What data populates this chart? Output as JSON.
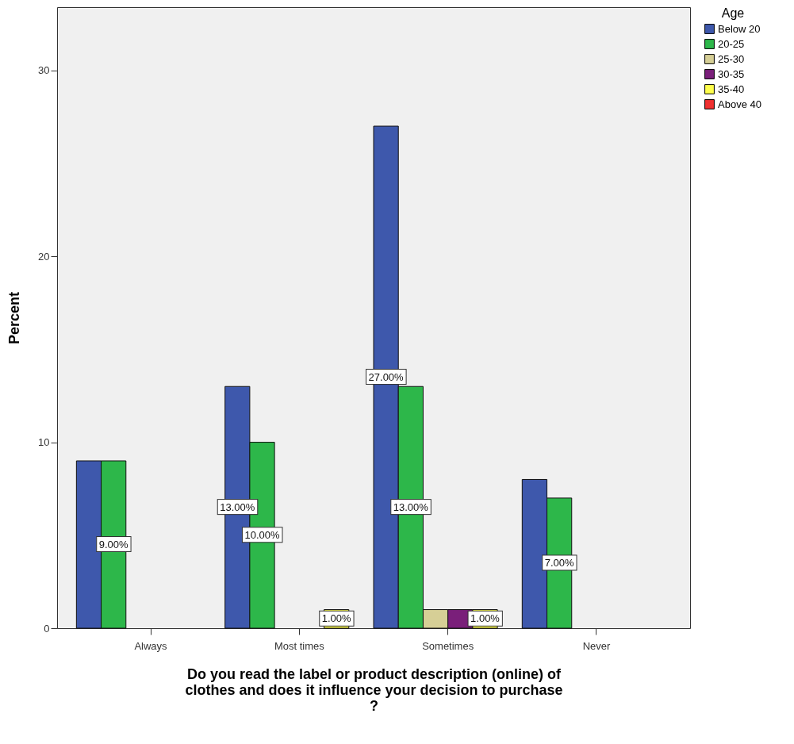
{
  "chart_data": {
    "type": "bar",
    "xlabel": "Do you read the label or product description (online) of clothes and does it influence your decision to purchase ?",
    "ylabel": "Percent",
    "legend_title": "Age",
    "categories": [
      "Always",
      "Most times",
      "Sometimes",
      "Never"
    ],
    "series": [
      {
        "name": "Below 20",
        "color": "#3e58ac",
        "values": [
          9,
          13,
          27,
          8
        ],
        "value_labels": [
          null,
          "13.00%",
          "27.00%",
          null
        ]
      },
      {
        "name": "20-25",
        "color": "#2db74a",
        "values": [
          9,
          10,
          13,
          7
        ],
        "value_labels": [
          "9.00%",
          "10.00%",
          "13.00%",
          "7.00%"
        ]
      },
      {
        "name": "25-30",
        "color": "#d6cf96",
        "values": [
          null,
          null,
          1,
          null
        ]
      },
      {
        "name": "30-35",
        "color": "#7a1f7a",
        "values": [
          null,
          null,
          1,
          null
        ]
      },
      {
        "name": "35-40",
        "color": "#ffff4d",
        "values": [
          null,
          1,
          1,
          null
        ],
        "value_labels": [
          null,
          "1.00%",
          "1.00%",
          null
        ]
      },
      {
        "name": "Above 40",
        "color": "#f03030",
        "values": [
          null,
          null,
          null,
          null
        ]
      }
    ],
    "ylim": [
      0,
      33.4
    ],
    "yticks": [
      0,
      10,
      20,
      30
    ],
    "grid": false,
    "legend": "top right"
  }
}
